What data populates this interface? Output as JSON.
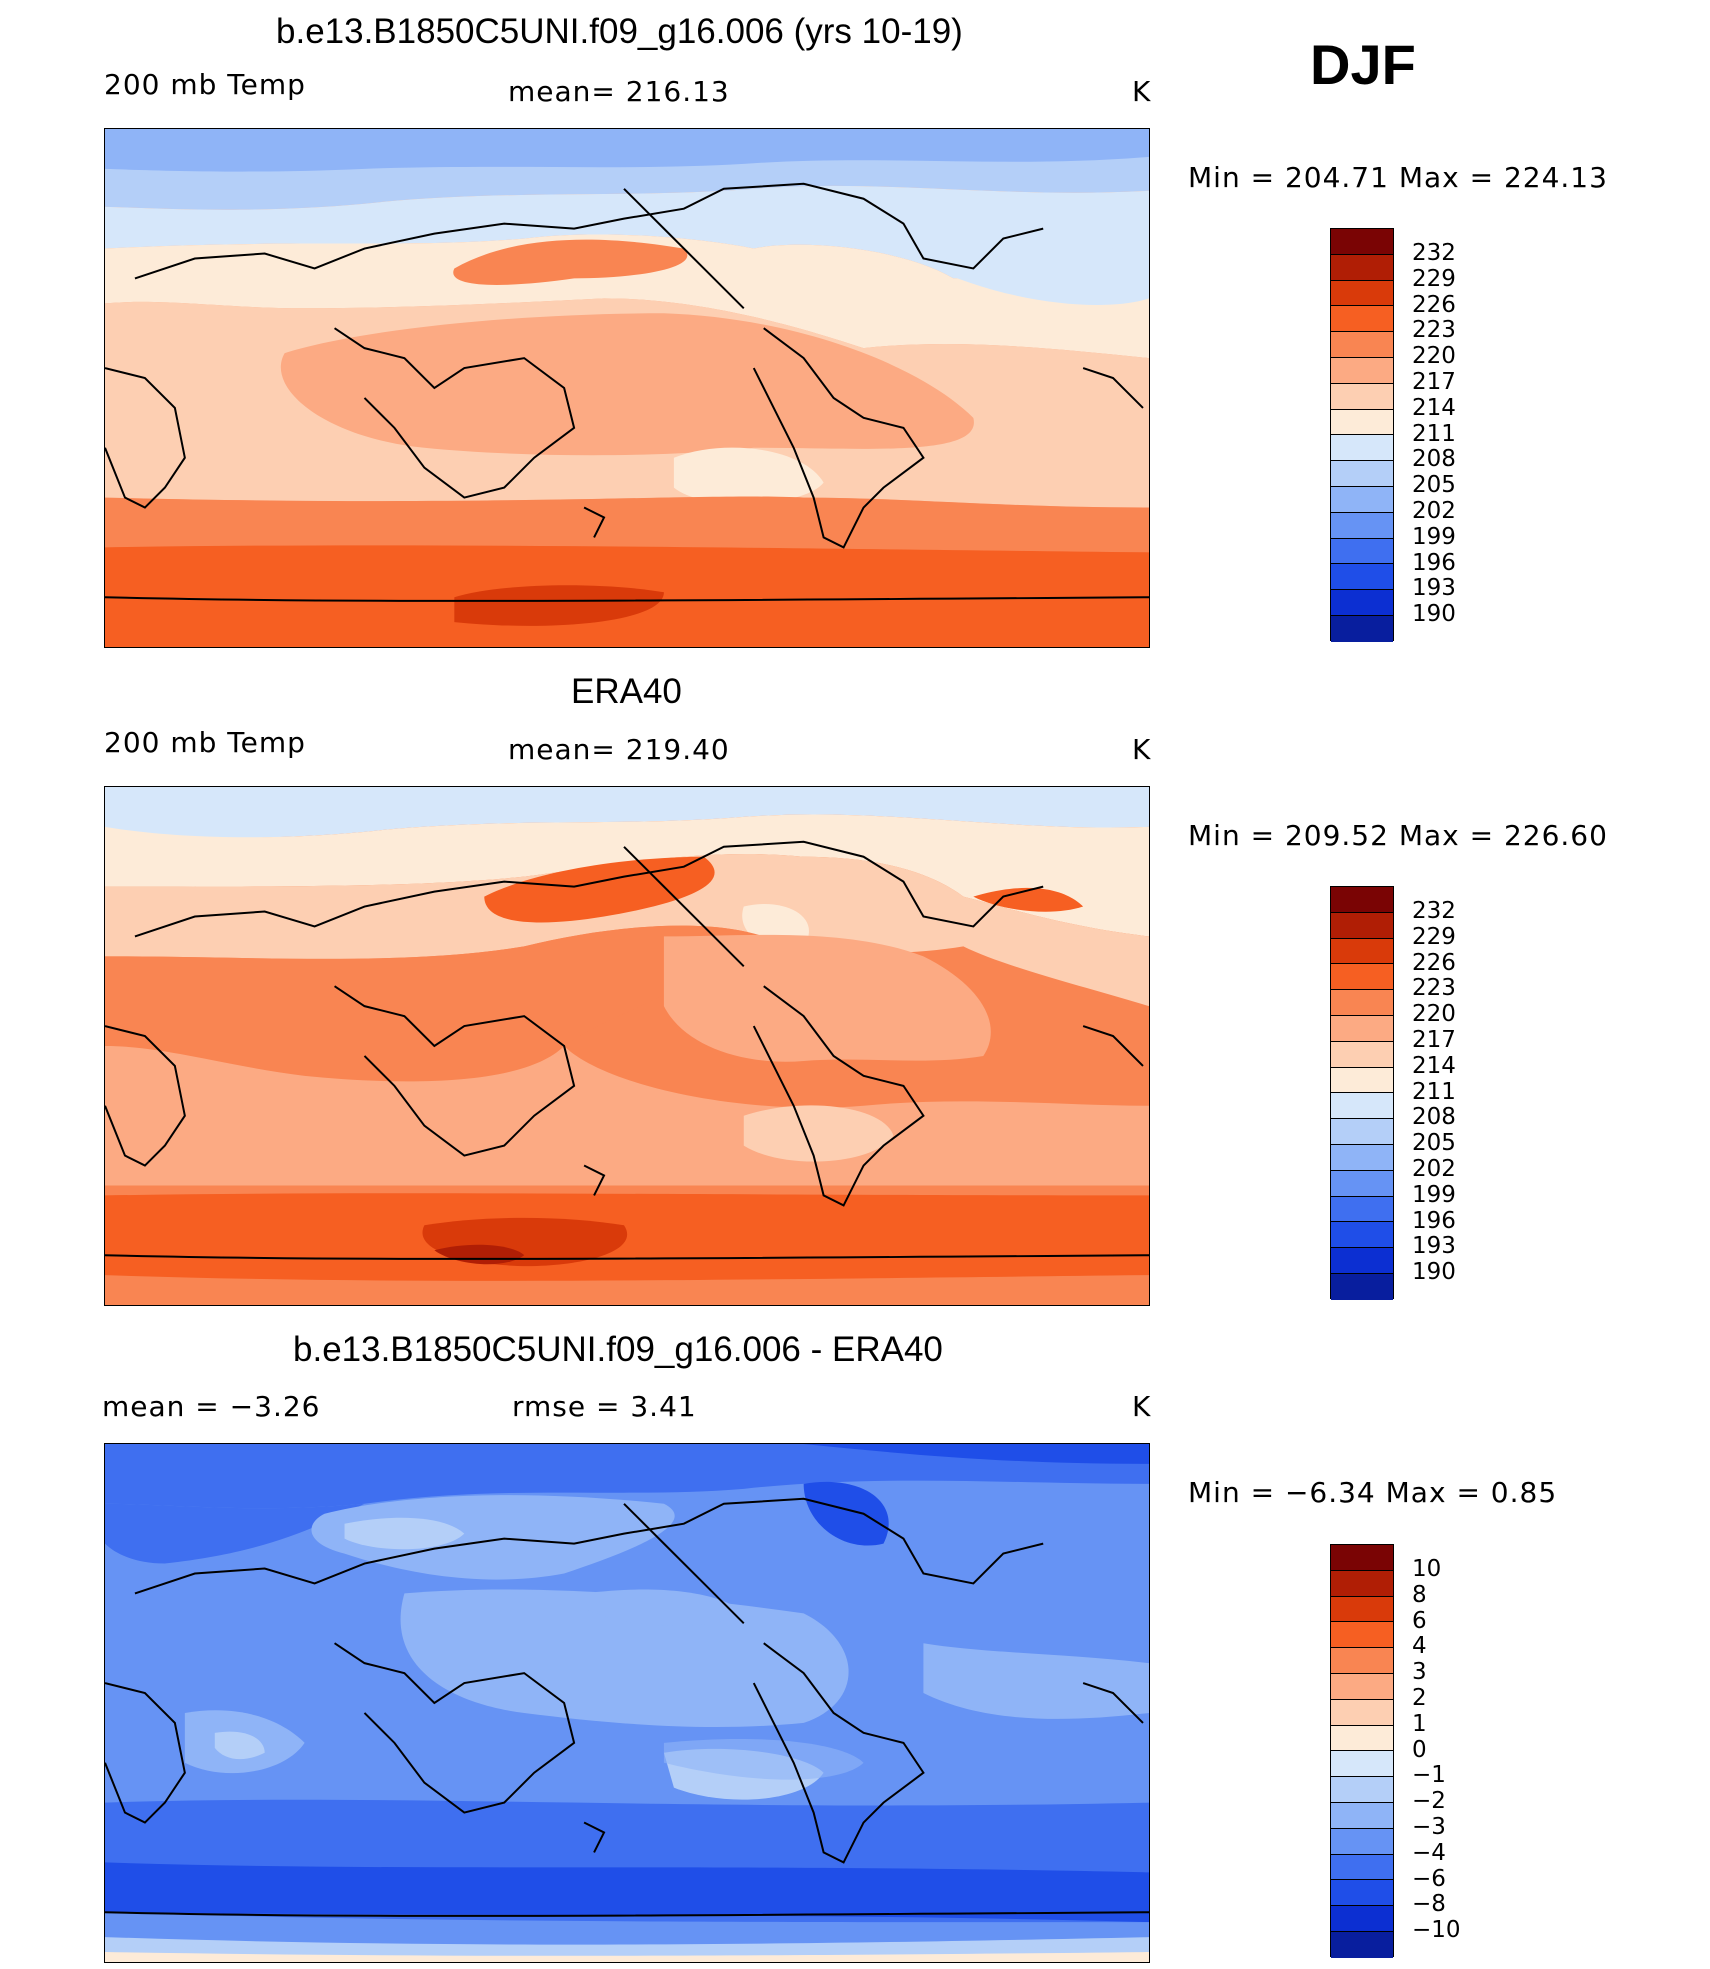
{
  "season": "DJF",
  "panels": [
    {
      "id": "model",
      "title": "b.e13.B1850C5UNI.f09_g16.006 (yrs 10-19)",
      "left_label": "200 mb Temp",
      "center_label": "mean=  216.13",
      "units": "K",
      "minmax": "Min  =  204.71  Max  =  224.13",
      "colorbar_levels": [
        "232",
        "229",
        "226",
        "223",
        "220",
        "217",
        "214",
        "211",
        "208",
        "205",
        "202",
        "199",
        "196",
        "193",
        "190"
      ]
    },
    {
      "id": "obs",
      "title": "ERA40",
      "left_label": "200 mb Temp",
      "center_label": "mean=  219.40",
      "units": "K",
      "minmax": "Min  =  209.52  Max  =  226.60",
      "colorbar_levels": [
        "232",
        "229",
        "226",
        "223",
        "220",
        "217",
        "214",
        "211",
        "208",
        "205",
        "202",
        "199",
        "196",
        "193",
        "190"
      ]
    },
    {
      "id": "diff",
      "title": "b.e13.B1850C5UNI.f09_g16.006 - ERA40",
      "left_label": "mean  =     −3.26",
      "center_label": "rmse  =     3.41",
      "units": "K",
      "minmax": "Min  =    −6.34  Max  =      0.85",
      "colorbar_levels": [
        "10",
        "8",
        "6",
        "4",
        "3",
        "2",
        "1",
        "0",
        "−1",
        "−2",
        "−3",
        "−4",
        "−6",
        "−8",
        "−10"
      ]
    }
  ],
  "colors": {
    "palette": [
      "#7a0404",
      "#b01e05",
      "#d93a0a",
      "#f65f22",
      "#f98552",
      "#fcaa83",
      "#fdcfb2",
      "#fdebd8",
      "#d6e7fa",
      "#b4cff8",
      "#8fb4f7",
      "#6693f4",
      "#3f6ff0",
      "#1f4ee8",
      "#0c2fd2",
      "#081e9e"
    ]
  }
}
